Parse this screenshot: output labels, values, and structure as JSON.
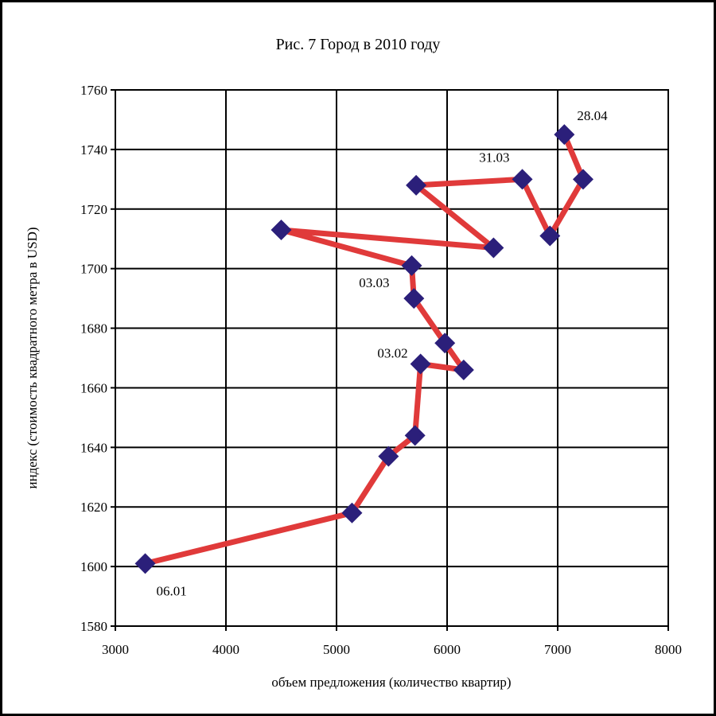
{
  "chart_data": {
    "type": "line",
    "title": "Рис. 7 Город в 2010 году",
    "xlabel": "объем предложения (количество квартир)",
    "ylabel": "индекс (стоимость квадратного метра в USD)",
    "xlim": [
      3000,
      8000
    ],
    "ylim": [
      1580,
      1760
    ],
    "xticks": [
      3000,
      4000,
      5000,
      6000,
      7000,
      8000
    ],
    "yticks": [
      1580,
      1600,
      1620,
      1640,
      1660,
      1680,
      1700,
      1720,
      1740,
      1760
    ],
    "grid": true,
    "line_color": "#e03a3a",
    "marker_color": "#2b1f7a",
    "series": [
      {
        "points": [
          {
            "x": 3270,
            "y": 1601,
            "label": "06.01"
          },
          {
            "x": 5140,
            "y": 1618
          },
          {
            "x": 5470,
            "y": 1637
          },
          {
            "x": 5710,
            "y": 1644
          },
          {
            "x": 5760,
            "y": 1668,
            "label": "03.02"
          },
          {
            "x": 6150,
            "y": 1666
          },
          {
            "x": 5980,
            "y": 1675
          },
          {
            "x": 5700,
            "y": 1690
          },
          {
            "x": 5680,
            "y": 1701,
            "label": "03.03"
          },
          {
            "x": 4500,
            "y": 1713
          },
          {
            "x": 6420,
            "y": 1707
          },
          {
            "x": 5720,
            "y": 1728
          },
          {
            "x": 6680,
            "y": 1730,
            "label": "31.03"
          },
          {
            "x": 6930,
            "y": 1711
          },
          {
            "x": 7230,
            "y": 1730
          },
          {
            "x": 7060,
            "y": 1745,
            "label": "28.04"
          }
        ]
      }
    ]
  }
}
